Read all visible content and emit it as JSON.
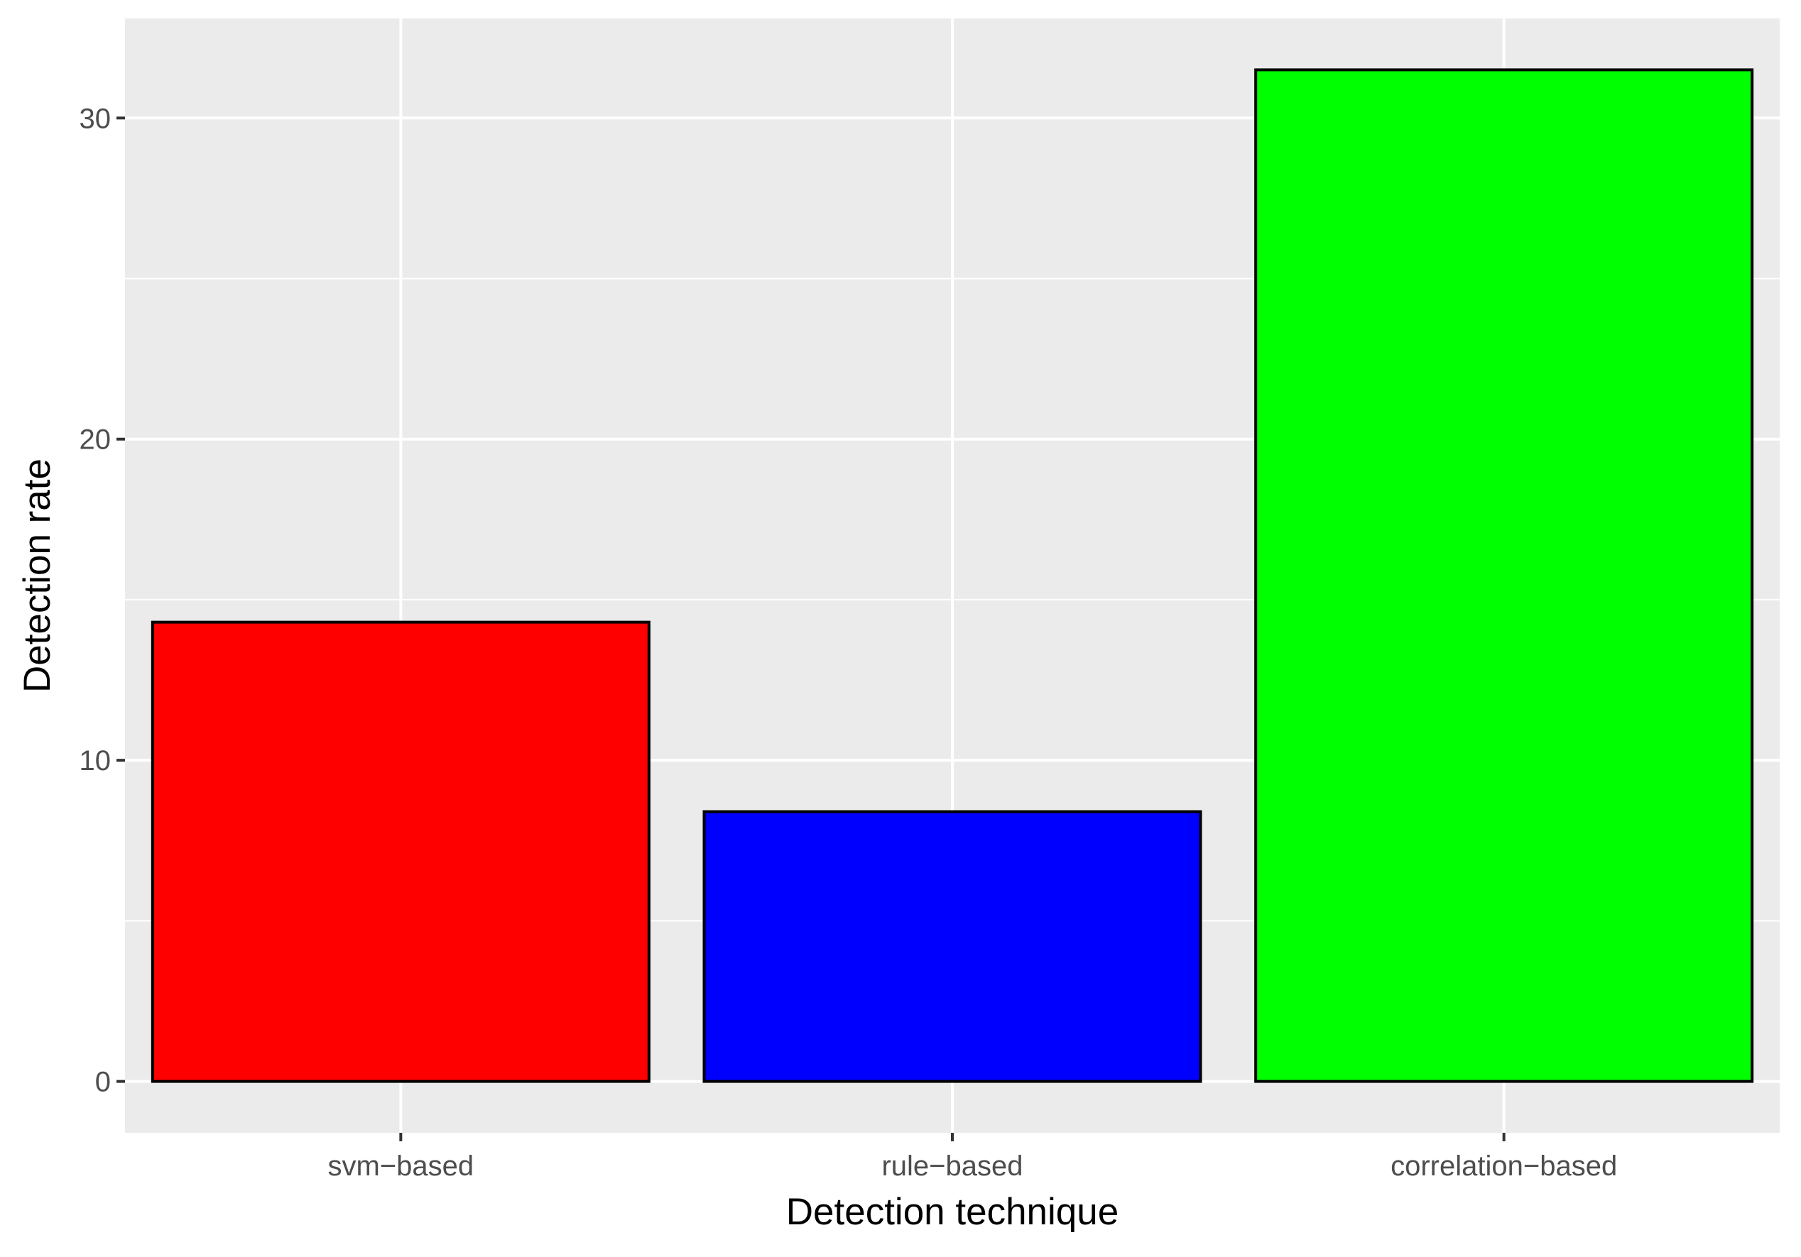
{
  "chart_data": {
    "type": "bar",
    "title": "",
    "xlabel": "Detection technique",
    "ylabel": "Detection rate",
    "categories": [
      "svm−based",
      "rule−based",
      "correlation−based"
    ],
    "values": [
      14.3,
      8.4,
      31.5
    ],
    "colors": [
      "#ff0000",
      "#0000ff",
      "#00ff00"
    ],
    "bar_outline_color": "#000000",
    "panel_background": "#ebebeb",
    "grid_color": "#ffffff",
    "grid": true,
    "legend": "none",
    "ylim": [
      -1.6,
      33.1
    ],
    "yticks": [
      0,
      10,
      20,
      30
    ],
    "ytick_labels": [
      "0",
      "10",
      "20",
      "30"
    ]
  }
}
